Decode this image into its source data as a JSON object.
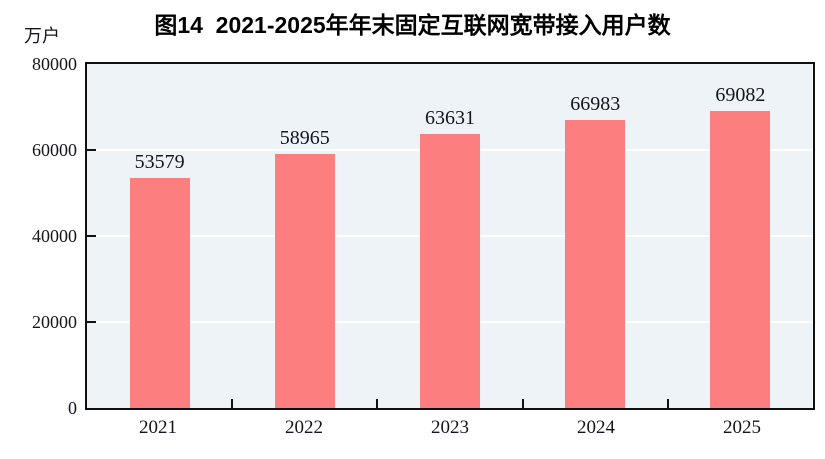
{
  "title": "图14  2021-2025年年末固定互联网宽带接入用户数",
  "unit_label": "万户",
  "chart_data": {
    "type": "bar",
    "title": "图14  2021-2025年年末固定互联网宽带接入用户数",
    "categories": [
      "2021",
      "2022",
      "2023",
      "2024",
      "2025"
    ],
    "values": [
      53579,
      58965,
      63631,
      66983,
      69082
    ],
    "xlabel": "",
    "ylabel": "万户",
    "ylim": [
      0,
      80000
    ],
    "ytick_step": 20000,
    "ytick_labels": [
      "0",
      "20000",
      "40000",
      "60000",
      "80000"
    ],
    "grid": true,
    "legend_position": "none",
    "bar_color": "#fc7e7e",
    "plot_background": "#edf3f7",
    "gridline_color": "#ffffff",
    "axis_color": "#111111",
    "label_color": "#15151f"
  }
}
